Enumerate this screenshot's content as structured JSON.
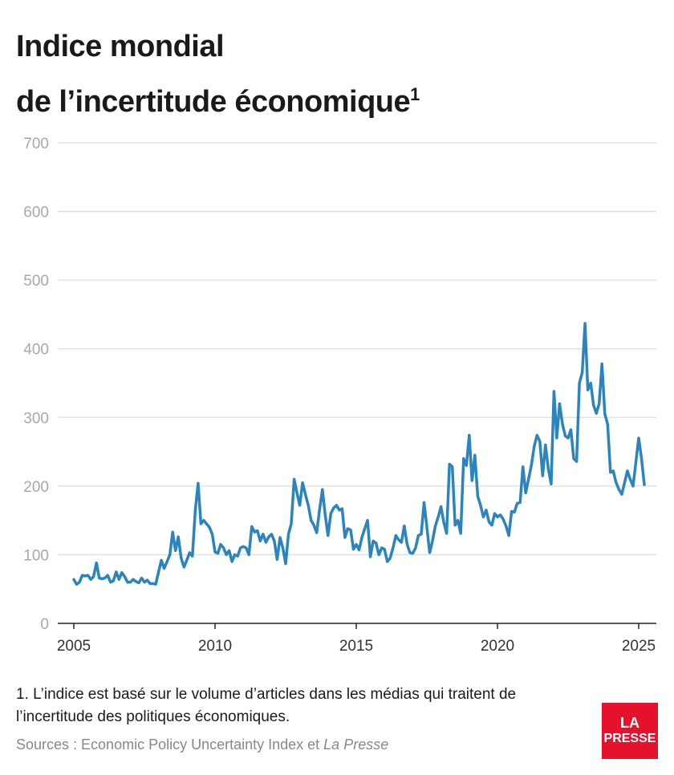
{
  "title": {
    "line1": "Indice mondial",
    "line2": "de l’incertitude économique",
    "superscript": "1"
  },
  "footnote": {
    "text": "1. L’indice est basé sur le volume d’articles dans les médias qui traitent de l’incertitude des politiques économiques."
  },
  "sources": {
    "prefix": "Sources : Economic Policy Uncertainty Index et ",
    "italic": "La Presse"
  },
  "logo": {
    "line1": "LA",
    "line2": "PRESSE",
    "color": "#e4122b"
  },
  "colors": {
    "line": "#2b84be",
    "grid": "#dddddd",
    "axis": "#222222"
  },
  "chart_data": {
    "type": "line",
    "title": "Indice mondial de l’incertitude économique",
    "xlabel": "",
    "ylabel": "",
    "xlim": [
      2005,
      2025.2
    ],
    "ylim": [
      0,
      700
    ],
    "yticks": [
      0,
      100,
      200,
      300,
      400,
      500,
      600,
      700
    ],
    "xticks": [
      2005,
      2010,
      2015,
      2020,
      2025
    ],
    "grid": true,
    "series": [
      {
        "values": [
          [
            2005.0,
            64
          ],
          [
            2005.1,
            57
          ],
          [
            2005.2,
            60
          ],
          [
            2005.3,
            70
          ],
          [
            2005.4,
            69
          ],
          [
            2005.5,
            70
          ],
          [
            2005.6,
            64
          ],
          [
            2005.7,
            68
          ],
          [
            2005.8,
            88
          ],
          [
            2005.9,
            66
          ],
          [
            2006.0,
            65
          ],
          [
            2006.1,
            66
          ],
          [
            2006.2,
            70
          ],
          [
            2006.3,
            60
          ],
          [
            2006.4,
            62
          ],
          [
            2006.5,
            75
          ],
          [
            2006.6,
            64
          ],
          [
            2006.7,
            74
          ],
          [
            2006.8,
            68
          ],
          [
            2006.9,
            60
          ],
          [
            2007.0,
            60
          ],
          [
            2007.1,
            64
          ],
          [
            2007.2,
            61
          ],
          [
            2007.3,
            59
          ],
          [
            2007.4,
            66
          ],
          [
            2007.5,
            60
          ],
          [
            2007.6,
            63
          ],
          [
            2007.7,
            58
          ],
          [
            2007.8,
            58
          ],
          [
            2007.9,
            57
          ],
          [
            2008.0,
            75
          ],
          [
            2008.1,
            92
          ],
          [
            2008.2,
            80
          ],
          [
            2008.3,
            90
          ],
          [
            2008.4,
            100
          ],
          [
            2008.5,
            133
          ],
          [
            2008.6,
            106
          ],
          [
            2008.7,
            126
          ],
          [
            2008.8,
            95
          ],
          [
            2008.9,
            82
          ],
          [
            2009.0,
            92
          ],
          [
            2009.1,
            103
          ],
          [
            2009.2,
            98
          ],
          [
            2009.3,
            165
          ],
          [
            2009.4,
            204
          ],
          [
            2009.5,
            145
          ],
          [
            2009.6,
            150
          ],
          [
            2009.7,
            145
          ],
          [
            2009.8,
            140
          ],
          [
            2009.9,
            130
          ],
          [
            2010.0,
            104
          ],
          [
            2010.1,
            102
          ],
          [
            2010.2,
            115
          ],
          [
            2010.3,
            110
          ],
          [
            2010.4,
            100
          ],
          [
            2010.5,
            106
          ],
          [
            2010.6,
            90
          ],
          [
            2010.7,
            100
          ],
          [
            2010.8,
            98
          ],
          [
            2010.9,
            110
          ],
          [
            2011.0,
            112
          ],
          [
            2011.1,
            110
          ],
          [
            2011.2,
            100
          ],
          [
            2011.3,
            141
          ],
          [
            2011.4,
            133
          ],
          [
            2011.5,
            135
          ],
          [
            2011.6,
            120
          ],
          [
            2011.7,
            130
          ],
          [
            2011.8,
            118
          ],
          [
            2011.9,
            126
          ],
          [
            2012.0,
            130
          ],
          [
            2012.1,
            120
          ],
          [
            2012.2,
            93
          ],
          [
            2012.3,
            125
          ],
          [
            2012.4,
            110
          ],
          [
            2012.5,
            87
          ],
          [
            2012.6,
            130
          ],
          [
            2012.7,
            145
          ],
          [
            2012.8,
            210
          ],
          [
            2012.9,
            190
          ],
          [
            2013.0,
            172
          ],
          [
            2013.1,
            205
          ],
          [
            2013.2,
            188
          ],
          [
            2013.3,
            172
          ],
          [
            2013.4,
            150
          ],
          [
            2013.5,
            143
          ],
          [
            2013.6,
            132
          ],
          [
            2013.7,
            165
          ],
          [
            2013.8,
            195
          ],
          [
            2013.9,
            158
          ],
          [
            2014.0,
            128
          ],
          [
            2014.1,
            160
          ],
          [
            2014.2,
            168
          ],
          [
            2014.3,
            172
          ],
          [
            2014.4,
            165
          ],
          [
            2014.5,
            167
          ],
          [
            2014.6,
            125
          ],
          [
            2014.7,
            138
          ],
          [
            2014.8,
            136
          ],
          [
            2014.9,
            108
          ],
          [
            2015.0,
            115
          ],
          [
            2015.1,
            107
          ],
          [
            2015.2,
            125
          ],
          [
            2015.3,
            138
          ],
          [
            2015.4,
            150
          ],
          [
            2015.5,
            97
          ],
          [
            2015.6,
            120
          ],
          [
            2015.7,
            117
          ],
          [
            2015.8,
            100
          ],
          [
            2015.9,
            110
          ],
          [
            2016.0,
            108
          ],
          [
            2016.1,
            90
          ],
          [
            2016.2,
            95
          ],
          [
            2016.3,
            110
          ],
          [
            2016.4,
            128
          ],
          [
            2016.5,
            122
          ],
          [
            2016.6,
            118
          ],
          [
            2016.7,
            142
          ],
          [
            2016.8,
            115
          ],
          [
            2016.9,
            103
          ],
          [
            2017.0,
            102
          ],
          [
            2017.1,
            110
          ],
          [
            2017.2,
            128
          ],
          [
            2017.3,
            130
          ],
          [
            2017.4,
            176
          ],
          [
            2017.5,
            140
          ],
          [
            2017.6,
            103
          ],
          [
            2017.7,
            120
          ],
          [
            2017.8,
            142
          ],
          [
            2017.9,
            155
          ],
          [
            2018.0,
            170
          ],
          [
            2018.1,
            147
          ],
          [
            2018.2,
            131
          ],
          [
            2018.3,
            232
          ],
          [
            2018.4,
            228
          ],
          [
            2018.5,
            143
          ],
          [
            2018.6,
            150
          ],
          [
            2018.7,
            131
          ],
          [
            2018.8,
            240
          ],
          [
            2018.9,
            230
          ],
          [
            2019.0,
            274
          ],
          [
            2019.1,
            208
          ],
          [
            2019.2,
            245
          ],
          [
            2019.3,
            185
          ],
          [
            2019.4,
            172
          ],
          [
            2019.5,
            155
          ],
          [
            2019.6,
            165
          ],
          [
            2019.7,
            148
          ],
          [
            2019.8,
            143
          ],
          [
            2019.9,
            160
          ],
          [
            2020.0,
            155
          ],
          [
            2020.1,
            158
          ],
          [
            2020.2,
            152
          ],
          [
            2020.3,
            142
          ],
          [
            2020.4,
            128
          ],
          [
            2020.5,
            163
          ],
          [
            2020.6,
            162
          ],
          [
            2020.7,
            175
          ],
          [
            2020.8,
            176
          ],
          [
            2020.9,
            228
          ],
          [
            2021.0,
            190
          ],
          [
            2021.1,
            210
          ],
          [
            2021.2,
            230
          ],
          [
            2021.3,
            258
          ],
          [
            2021.4,
            274
          ],
          [
            2021.5,
            265
          ],
          [
            2021.6,
            215
          ],
          [
            2021.7,
            260
          ],
          [
            2021.8,
            225
          ],
          [
            2021.9,
            203
          ],
          [
            2022.0,
            338
          ],
          [
            2022.1,
            270
          ],
          [
            2022.2,
            320
          ],
          [
            2022.3,
            290
          ],
          [
            2022.4,
            273
          ],
          [
            2022.5,
            270
          ],
          [
            2022.6,
            282
          ],
          [
            2022.7,
            240
          ],
          [
            2022.8,
            236
          ],
          [
            2022.9,
            350
          ],
          [
            2023.0,
            365
          ],
          [
            2023.1,
            437
          ],
          [
            2023.2,
            340
          ],
          [
            2023.3,
            350
          ],
          [
            2023.4,
            318
          ],
          [
            2023.5,
            306
          ],
          [
            2023.6,
            320
          ],
          [
            2023.7,
            378
          ],
          [
            2023.8,
            305
          ],
          [
            2023.9,
            290
          ],
          [
            2024.0,
            220
          ],
          [
            2024.1,
            222
          ],
          [
            2024.2,
            205
          ],
          [
            2024.3,
            195
          ],
          [
            2024.4,
            188
          ],
          [
            2024.5,
            205
          ],
          [
            2024.6,
            222
          ],
          [
            2024.7,
            210
          ],
          [
            2024.8,
            200
          ],
          [
            2024.9,
            235
          ],
          [
            2025.0,
            270
          ],
          [
            2025.1,
            240
          ],
          [
            2025.2,
            202
          ]
        ]
      }
    ]
  }
}
